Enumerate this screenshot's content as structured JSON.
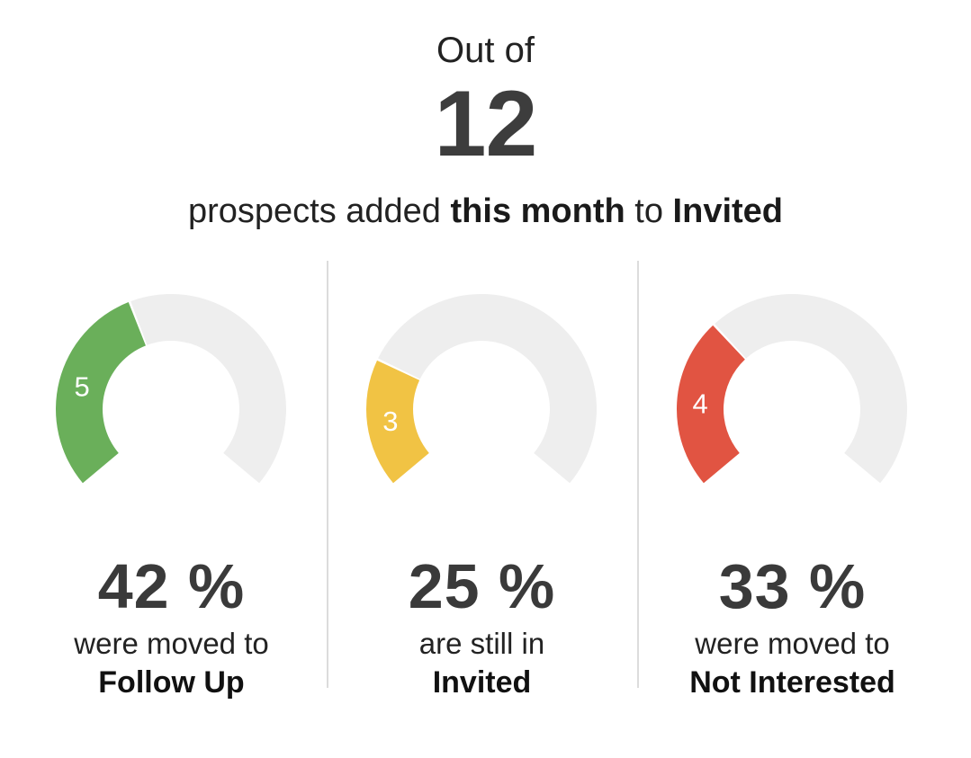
{
  "header": {
    "out_of_label": "Out of",
    "total": "12",
    "summary_prefix": "prospects added",
    "summary_period": "this month",
    "summary_to": "to",
    "summary_stage": "Invited"
  },
  "chart_data": {
    "type": "gauge",
    "total": 12,
    "gauges": [
      {
        "count": 5,
        "count_label": "5",
        "percent_label": "42 %",
        "description": "were moved to",
        "target": "Follow Up",
        "color": "#6aaf5a"
      },
      {
        "count": 3,
        "count_label": "3",
        "percent_label": "25 %",
        "description": "are still in",
        "target": "Invited",
        "color": "#f1c344"
      },
      {
        "count": 4,
        "count_label": "4",
        "percent_label": "33 %",
        "description": "were moved to",
        "target": "Not Interested",
        "color": "#e15442"
      }
    ],
    "track_color": "#eeeeee"
  }
}
